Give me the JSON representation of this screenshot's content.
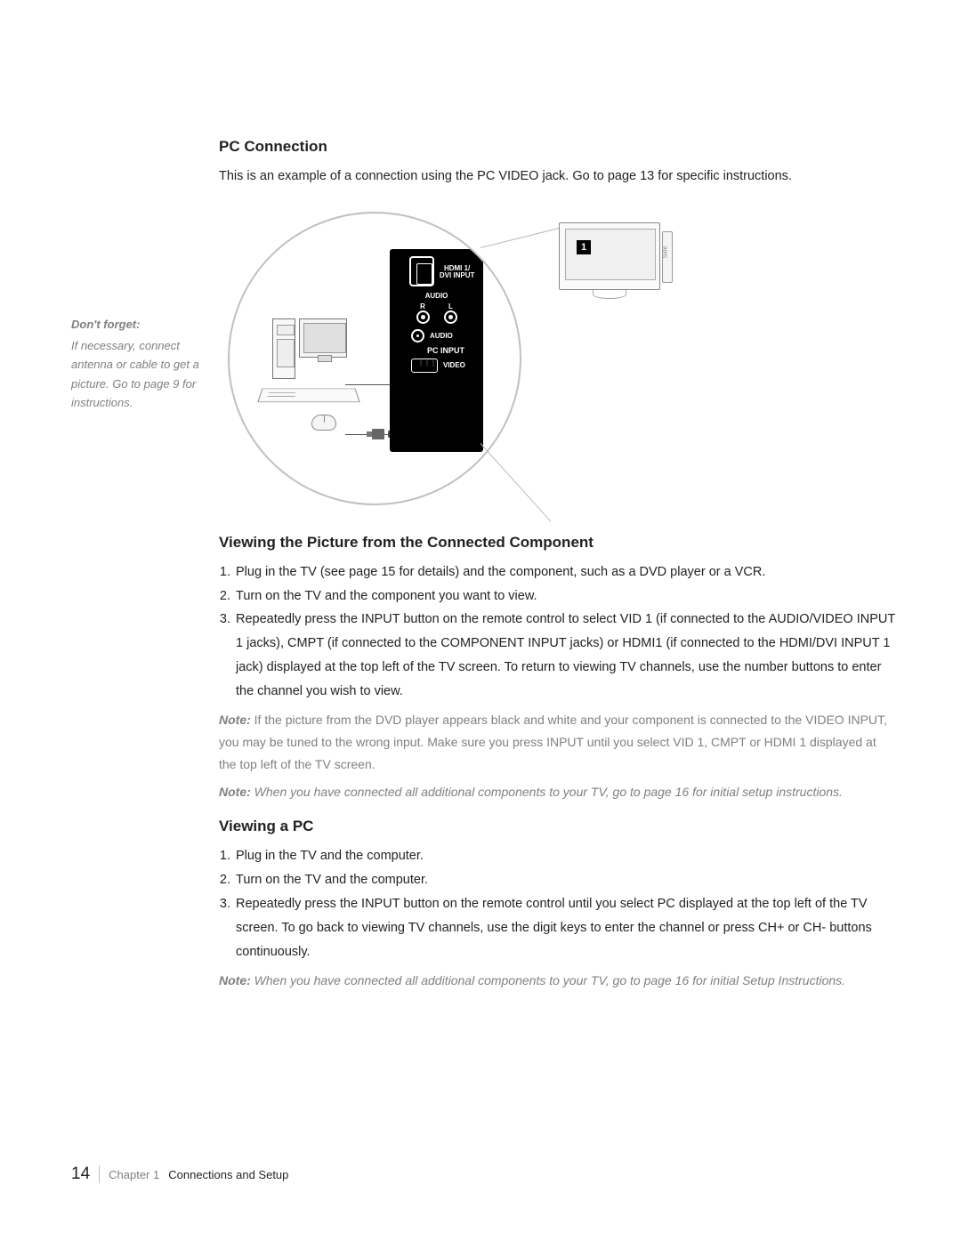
{
  "sidebar": {
    "heading": "Don't forget:",
    "text": "If necessary, connect antenna or cable to get a picture. Go to page 9 for instructions."
  },
  "section_pc": {
    "heading": "PC Connection",
    "intro": "This is an example of a connection using the PC VIDEO jack. Go to page 13 for specific instructions."
  },
  "diagram": {
    "hdmi_label_1": "HDMI 1/",
    "hdmi_label_2": "DVI INPUT",
    "audio_label": "AUDIO",
    "r_label": "R",
    "l_label": "L",
    "audio_jack_label": "AUDIO",
    "pcinput_label": "PC INPUT",
    "video_label": "VIDEO",
    "tv_badge": "1",
    "tv_side": "Side"
  },
  "section_viewing": {
    "heading": "Viewing the Picture from the Connected Component",
    "steps": [
      "Plug in the TV (see page 15 for details) and the component, such as a DVD player or a VCR.",
      "Turn on the TV and the component you want to view.",
      "Repeatedly press the INPUT button on the remote control to select VID 1 (if connected to the AUDIO/VIDEO INPUT 1 jacks), CMPT (if connected to the COMPONENT INPUT jacks) or HDMI1 (if connected to the HDMI/DVI INPUT 1 jack) displayed at the top left of the TV screen. To return to viewing TV channels, use the number buttons to enter the channel you wish to view."
    ],
    "note1_prefix": "Note:",
    "note1_text": " If the picture from the DVD player appears black and white and your component is connected to the VIDEO INPUT, you may be tuned to the wrong input. Make sure you press INPUT until you select VID 1, CMPT or HDMI 1 displayed at the top left of the TV screen.",
    "note2_prefix": "Note:",
    "note2_text": " When you have connected all additional components to your TV, go to page 16 for initial setup instructions."
  },
  "section_pc_view": {
    "heading": "Viewing a PC",
    "steps": [
      "Plug in the TV and the computer.",
      "Turn on the TV and the computer.",
      "Repeatedly press the INPUT button on the remote control until you select PC displayed at the top left of the TV screen. To go back to viewing TV channels, use the digit keys to enter the channel or press CH+ or CH- buttons continuously."
    ],
    "note_prefix": "Note:",
    "note_text": " When you have connected all additional components to your TV, go to page 16 for initial Setup Instructions."
  },
  "footer": {
    "page_num": "14",
    "chapter": "Chapter 1",
    "chapter_title": "Connections and Setup"
  },
  "colors": {
    "text": "#231f20",
    "muted": "#808080",
    "panel_bg": "#000000",
    "panel_fg": "#ffffff",
    "circle_border": "#c0c0c0",
    "background": "#ffffff"
  }
}
